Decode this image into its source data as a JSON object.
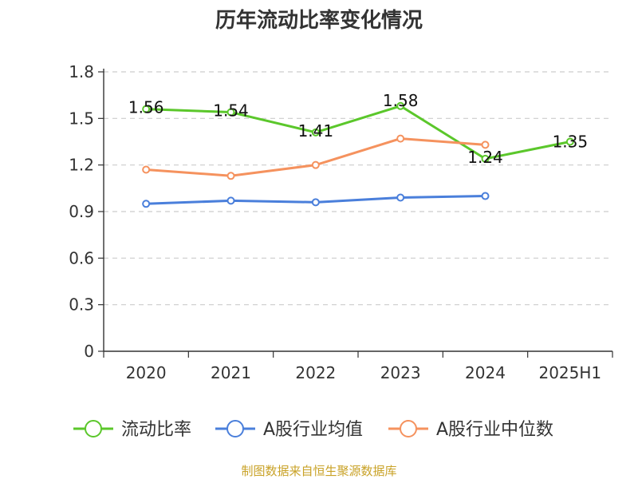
{
  "chart_data": {
    "type": "line",
    "title": "历年流动比率变化情况",
    "categories": [
      "2020",
      "2021",
      "2022",
      "2023",
      "2024",
      "2025H1"
    ],
    "ylim": [
      0,
      1.8
    ],
    "yticks": [
      "0",
      "0.3",
      "0.6",
      "0.9",
      "1.2",
      "1.5",
      "1.8"
    ],
    "ytick_values": [
      0,
      0.3,
      0.6,
      0.9,
      1.2,
      1.5,
      1.8
    ],
    "grid": true,
    "legend_position": "bottom",
    "series": [
      {
        "name": "流动比率",
        "color": "#5bc72b",
        "values": [
          1.56,
          1.54,
          1.41,
          1.58,
          1.24,
          1.35
        ],
        "labels": [
          "1.56",
          "1.54",
          "1.41",
          "1.58",
          "1.24",
          "1.35"
        ],
        "show_labels": true
      },
      {
        "name": "A股行业均值",
        "color": "#4a7fdb",
        "values": [
          0.95,
          0.97,
          0.96,
          0.99,
          1.0,
          null
        ],
        "show_labels": false
      },
      {
        "name": "A股行业中位数",
        "color": "#f5925e",
        "values": [
          1.17,
          1.13,
          1.2,
          1.37,
          1.33,
          null
        ],
        "show_labels": false
      }
    ],
    "source": "制图数据来自恒生聚源数据库",
    "source_color": "#c9a227"
  }
}
